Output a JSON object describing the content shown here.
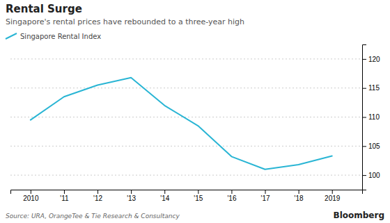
{
  "chart_data": {
    "type": "line",
    "title": "Rental Surge",
    "subtitle": "Singapore's rental prices have rebounded to a three-year high",
    "source": "Source: URA, OrangeTee & Tie Research & Consultancy",
    "annotations": [
      "Bloomberg"
    ],
    "x": [
      2010,
      2011,
      2012,
      2013,
      2014,
      2015,
      2016,
      2017,
      2018,
      2019
    ],
    "series": [
      {
        "name": "Singapore Rental Index",
        "color": "#29b5d4",
        "values": [
          109.5,
          113.5,
          115.5,
          116.8,
          112.0,
          108.5,
          103.2,
          101.0,
          101.8,
          103.3
        ]
      }
    ],
    "xlim": [
      2009.4,
      2019.9
    ],
    "xticks": [
      2010,
      {
        "value": 2011,
        "label": "'11"
      },
      {
        "value": 2012,
        "label": "'12"
      },
      {
        "value": 2013,
        "label": "'13"
      },
      {
        "value": 2014,
        "label": "'14"
      },
      {
        "value": 2015,
        "label": "'15"
      },
      {
        "value": 2016,
        "label": "'16"
      },
      {
        "value": 2017,
        "label": "'17"
      },
      {
        "value": 2018,
        "label": "'18"
      },
      2019
    ],
    "ylim": [
      97.5,
      122.5
    ],
    "yticks": [
      100,
      105,
      110,
      115,
      120
    ],
    "grid": true,
    "legend": "top-left"
  }
}
